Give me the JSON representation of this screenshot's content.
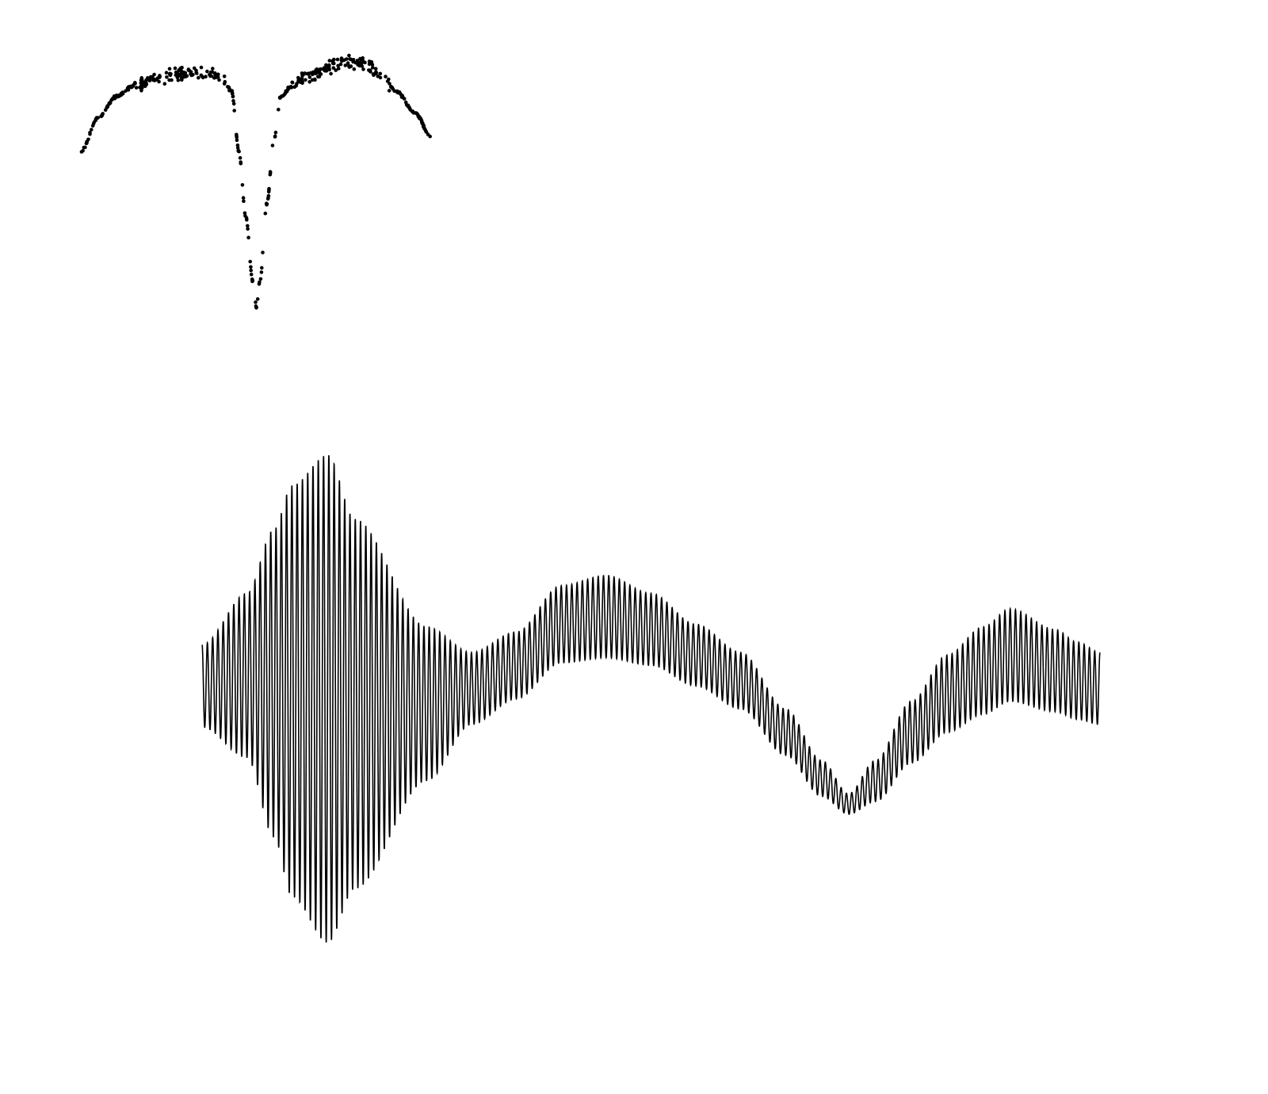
{
  "chart_data": [
    {
      "type": "scatter",
      "title": "",
      "xlabel": "",
      "ylabel": "",
      "axes_visible": false,
      "grid": false,
      "color": "#000000",
      "point_count": 480,
      "xlim": [
        0,
        1
      ],
      "ylim": [
        0,
        1
      ],
      "series": [
        {
          "x": [
            0.0,
            0.05,
            0.1,
            0.15,
            0.2,
            0.25,
            0.3,
            0.35,
            0.4,
            0.43,
            0.45,
            0.47,
            0.49,
            0.5,
            0.51,
            0.53,
            0.55,
            0.57,
            0.6,
            0.65,
            0.7,
            0.75,
            0.8,
            0.85,
            0.9,
            0.95,
            1.0
          ],
          "y": [
            0.65,
            0.78,
            0.86,
            0.9,
            0.92,
            0.94,
            0.95,
            0.95,
            0.94,
            0.88,
            0.65,
            0.4,
            0.15,
            0.05,
            0.15,
            0.45,
            0.7,
            0.86,
            0.9,
            0.94,
            0.97,
            1.0,
            0.99,
            0.95,
            0.88,
            0.8,
            0.7
          ]
        }
      ]
    },
    {
      "type": "line",
      "title": "",
      "xlabel": "",
      "ylabel": "",
      "axes_visible": false,
      "grid": false,
      "color": "#000000",
      "oscillation_cycles": 170,
      "xlim": [
        0,
        1
      ],
      "ylim": [
        -1,
        1
      ],
      "series": [
        {
          "name": "",
          "x": [
            0.0,
            0.05,
            0.08,
            0.1,
            0.14,
            0.17,
            0.25,
            0.3,
            0.35,
            0.4,
            0.45,
            0.5,
            0.55,
            0.6,
            0.65,
            0.69,
            0.72,
            0.75,
            0.79,
            0.83,
            0.87,
            0.9,
            0.95,
            0.975,
            1.0
          ],
          "center": [
            0.2,
            0.24,
            0.21,
            0.18,
            0.15,
            0.13,
            0.13,
            0.19,
            0.28,
            0.44,
            0.47,
            0.42,
            0.32,
            0.22,
            0.02,
            -0.16,
            -0.26,
            -0.17,
            0.02,
            0.17,
            0.26,
            0.32,
            0.26,
            0.22,
            0.19
          ],
          "amplitude": [
            0.16,
            0.32,
            0.6,
            0.8,
            0.95,
            0.72,
            0.3,
            0.14,
            0.13,
            0.15,
            0.16,
            0.14,
            0.12,
            0.11,
            0.09,
            0.07,
            0.04,
            0.08,
            0.12,
            0.15,
            0.17,
            0.18,
            0.16,
            0.15,
            0.14
          ]
        }
      ]
    }
  ]
}
